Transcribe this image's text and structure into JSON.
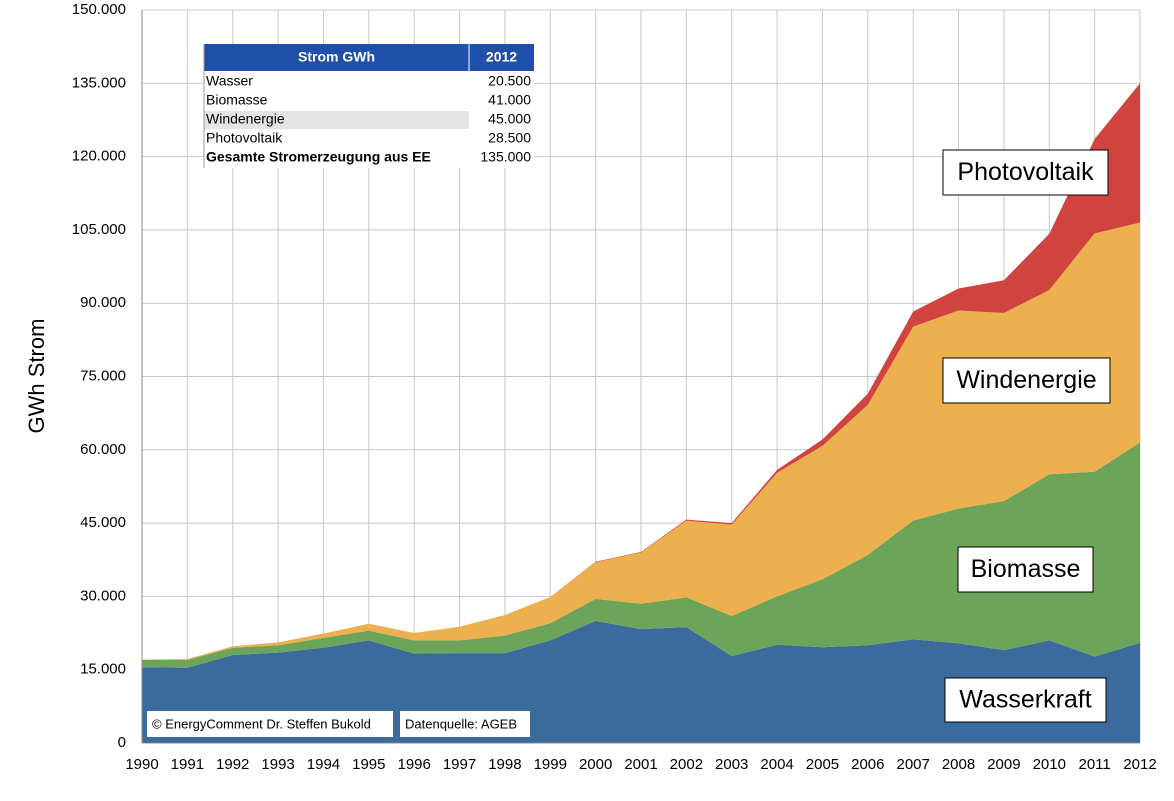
{
  "chart_data": {
    "type": "stacked-area",
    "y_label": "GWh Strom",
    "categories": [
      "1990",
      "1991",
      "1992",
      "1993",
      "1994",
      "1995",
      "1996",
      "1997",
      "1998",
      "1999",
      "2000",
      "2001",
      "2002",
      "2003",
      "2004",
      "2005",
      "2006",
      "2007",
      "2008",
      "2009",
      "2010",
      "2011",
      "2012"
    ],
    "series": [
      {
        "name": "Wasserkraft",
        "color": "#3b6a9c",
        "values": [
          15500,
          15400,
          18000,
          18500,
          19500,
          21000,
          18300,
          18400,
          18400,
          21000,
          25000,
          23300,
          23700,
          17800,
          20100,
          19600,
          20000,
          21200,
          20400,
          19000,
          21000,
          17700,
          20500
        ]
      },
      {
        "name": "Biomasse",
        "color": "#6ca55a",
        "values": [
          1500,
          1600,
          1500,
          1500,
          2000,
          2000,
          2700,
          2600,
          3600,
          3500,
          4500,
          5200,
          6100,
          8200,
          9900,
          13900,
          18500,
          24300,
          27600,
          30500,
          34000,
          37800,
          41000
        ]
      },
      {
        "name": "Windenergie",
        "color": "#ecb04e",
        "values": [
          100,
          200,
          300,
          600,
          900,
          1400,
          1500,
          2800,
          4200,
          5400,
          7500,
          10500,
          15700,
          18700,
          25300,
          27300,
          30700,
          39700,
          40500,
          38500,
          37700,
          48800,
          45000
        ]
      },
      {
        "name": "Photovoltaik",
        "color": "#d1433f",
        "values": [
          0,
          0,
          0,
          0,
          0,
          0,
          0,
          0,
          0,
          0,
          100,
          100,
          200,
          300,
          600,
          1300,
          2300,
          3100,
          4500,
          6700,
          11500,
          19300,
          28500
        ]
      }
    ],
    "ylim": [
      0,
      150000
    ],
    "yticks": [
      0,
      {
        "value": 15000,
        "label": "15.000"
      },
      {
        "value": 30000,
        "label": "30.000"
      },
      {
        "value": 45000,
        "label": "45.000"
      },
      {
        "value": 60000,
        "label": "60.000"
      },
      {
        "value": 75000,
        "label": "75.000"
      },
      {
        "value": 90000,
        "label": "90.000"
      },
      {
        "value": 105000,
        "label": "105.000"
      },
      {
        "value": 120000,
        "label": "120.000"
      },
      {
        "value": 135000,
        "label": "135.000"
      },
      {
        "value": 150000,
        "label": "150.000"
      }
    ],
    "grid": true,
    "table": {
      "header": [
        "Strom  GWh",
        "2012"
      ],
      "rows": [
        [
          "Wasser",
          "20.500"
        ],
        [
          "Biomasse",
          "41.000"
        ],
        [
          "Windenergie",
          "45.000"
        ],
        [
          "Photovoltaik",
          "28.500"
        ],
        [
          "Gesamte Stromerzeugung aus EE",
          "135.000"
        ]
      ]
    },
    "credits": [
      "© EnergyComment Dr. Steffen Bukold",
      "Datenquelle: AGEB"
    ]
  }
}
